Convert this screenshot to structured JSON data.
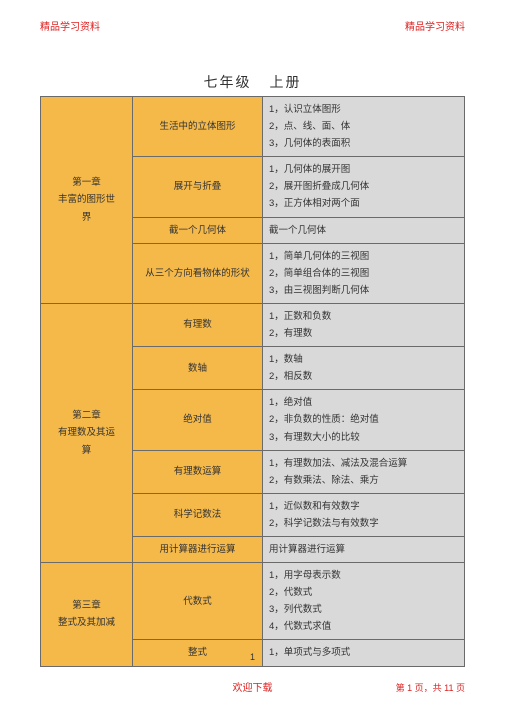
{
  "header": {
    "left": "精品学习资料",
    "right": "精品学习资料"
  },
  "title": {
    "grade": "七年级",
    "volume": "上册"
  },
  "colors": {
    "orange": "#f5b94a",
    "gray": "#d9d9d9",
    "border": "#6a6a6a",
    "red": "#d22",
    "bg": "#ffffff"
  },
  "chapters": [
    {
      "name": "第一章\n丰富的图形世\n界",
      "sections": [
        {
          "name": "生活中的立体图形",
          "points": [
            "1，认识立体图形",
            "2，点、线、面、体",
            "3，几何体的表面积"
          ]
        },
        {
          "name": "展开与折叠",
          "points": [
            "1，几何体的展开图",
            "2，展开图折叠成几何体",
            "3，正方体相对两个面"
          ]
        },
        {
          "name": "截一个几何体",
          "points": [
            "截一个几何体"
          ]
        },
        {
          "name": "从三个方向看物体的形状",
          "points": [
            "1，简单几何体的三视图",
            "2，简单组合体的三视图",
            "3，由三视图判断几何体"
          ]
        }
      ]
    },
    {
      "name": "第二章\n有理数及其运\n算",
      "sections": [
        {
          "name": "有理数",
          "points": [
            "1，正数和负数",
            "2，有理数"
          ]
        },
        {
          "name": "数轴",
          "points": [
            "1，数轴",
            "2，相反数"
          ]
        },
        {
          "name": "绝对值",
          "points": [
            "1，绝对值",
            "2，非负数的性质：绝对值",
            "3，有理数大小的比较"
          ]
        },
        {
          "name": "有理数运算",
          "points": [
            "1，有理数加法、减法及混合运算",
            "2，有数乘法、除法、乘方"
          ]
        },
        {
          "name": "科学记数法",
          "points": [
            "1，近似数和有效数字",
            "2，科学记数法与有效数字"
          ]
        },
        {
          "name": "用计算器进行运算",
          "points": [
            "用计算器进行运算"
          ]
        }
      ]
    },
    {
      "name": "第三章\n整式及其加减",
      "sections": [
        {
          "name": "代数式",
          "points": [
            "1，用字母表示数",
            "2，代数式",
            "3，列代数式",
            "4，代数式求值"
          ]
        },
        {
          "name": "整式",
          "points": [
            "1，单项式与多项式"
          ]
        }
      ]
    }
  ],
  "page_number": "1",
  "footer": {
    "center": "欢迎下载",
    "right": "第 1 页，共 11 页"
  }
}
